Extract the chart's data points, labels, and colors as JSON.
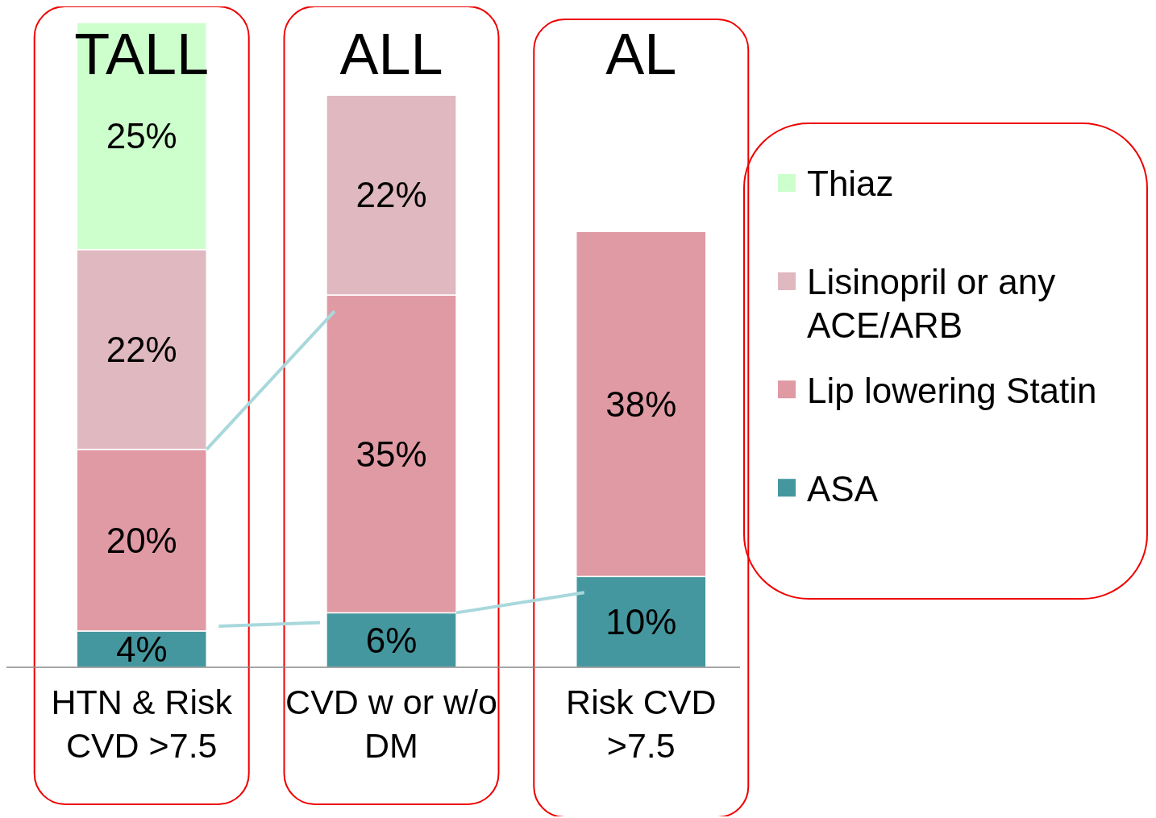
{
  "chart_data": {
    "type": "bar",
    "stacked": true,
    "legend": "right",
    "categories": [
      "HTN & Risk CVD >7.5",
      "CVD w or w/o DM",
      "Risk CVD >7.5"
    ],
    "series": [
      {
        "name": "ASA",
        "color": "#45979f",
        "values": [
          4,
          6,
          10
        ],
        "value_labels": [
          "4%",
          "6%",
          "10%"
        ]
      },
      {
        "name": "Lip lowering Statin",
        "color": "#e09aa4",
        "values": [
          20,
          35,
          38
        ],
        "value_labels": [
          "20%",
          "35%",
          "38%"
        ]
      },
      {
        "name": "Lisinopril or any ACE/ARB",
        "color": "#e0b8c0",
        "values": [
          22,
          22,
          null
        ],
        "value_labels": [
          "22%",
          "22%",
          null
        ]
      },
      {
        "name": "Thiaz",
        "color": "#ccffcc",
        "values": [
          25,
          null,
          null
        ],
        "value_labels": [
          "25%",
          null,
          null
        ]
      }
    ],
    "annotations": [
      "TALL",
      "ALL",
      "AL"
    ]
  }
}
